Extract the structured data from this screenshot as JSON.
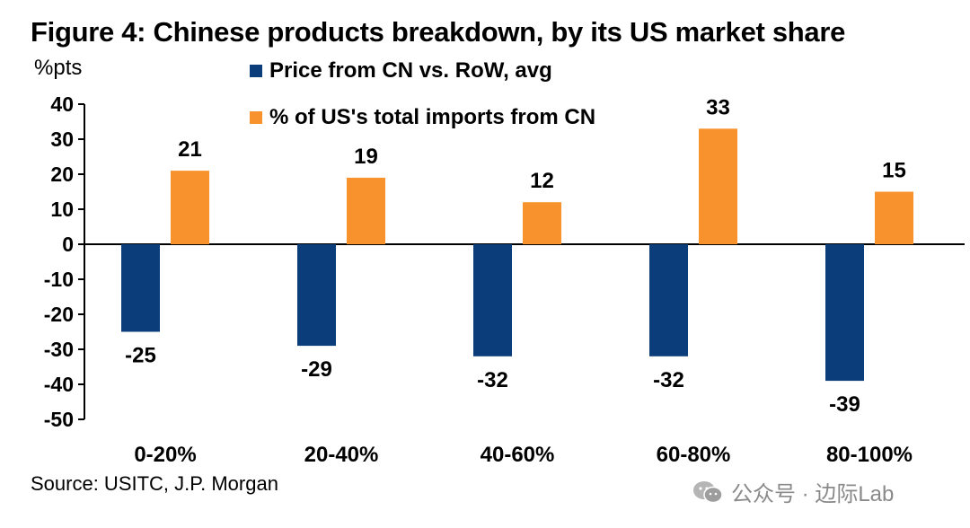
{
  "title": "Figure 4: Chinese products breakdown, by its US market share",
  "source": "Source: USITC, J.P. Morgan",
  "watermark": "公众号 · 边际Lab",
  "colors": {
    "series1": "#0b3d7a",
    "series2": "#f7922c"
  },
  "chart_data": {
    "type": "bar",
    "title": "Figure 4: Chinese products breakdown, by its US market share",
    "ylabel": "%pts",
    "xlabel": "",
    "ylim": [
      -50,
      40
    ],
    "yticks": [
      40,
      30,
      20,
      10,
      0,
      -10,
      -20,
      -30,
      -40,
      -50
    ],
    "grid": false,
    "legend_position": "top",
    "categories": [
      "0-20%",
      "20-40%",
      "40-60%",
      "60-80%",
      "80-100%"
    ],
    "series": [
      {
        "name": "Price from CN vs. RoW, avg",
        "values": [
          -25,
          -29,
          -32,
          -32,
          -39
        ]
      },
      {
        "name": "% of US's total imports from CN",
        "values": [
          21,
          19,
          12,
          33,
          15
        ]
      }
    ],
    "data_labels": [
      [
        "-25",
        "-29",
        "-32",
        "-32",
        "-39"
      ],
      [
        "21",
        "19",
        "12",
        "33",
        "15"
      ]
    ]
  }
}
